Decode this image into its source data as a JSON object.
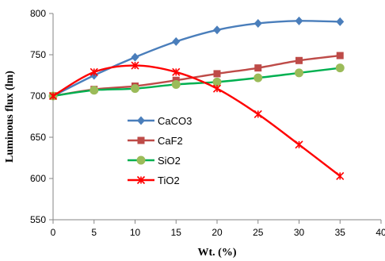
{
  "chart_data": {
    "type": "line",
    "xlabel": "Wt. (%)",
    "ylabel": "Luminous flux (lm)",
    "xlim": [
      0,
      40
    ],
    "ylim": [
      550,
      800
    ],
    "xticks": [
      "0",
      "5",
      "10",
      "15",
      "20",
      "25",
      "30",
      "35",
      "40"
    ],
    "yticks": [
      "550",
      "600",
      "650",
      "700",
      "750",
      "800"
    ],
    "grid": false,
    "legend_position": "center-left",
    "series": [
      {
        "name": "CaCO3",
        "color": "#4a7ebb",
        "marker": "diamond",
        "x": [
          0,
          5,
          10,
          15,
          20,
          25,
          30,
          35
        ],
        "y": [
          700,
          725,
          747,
          766,
          780,
          788,
          791,
          790
        ]
      },
      {
        "name": "CaF2",
        "color": "#be4b48",
        "marker": "square",
        "x": [
          0,
          5,
          10,
          15,
          20,
          25,
          30,
          35
        ],
        "y": [
          700,
          708,
          712,
          719,
          727,
          734,
          743,
          749
        ]
      },
      {
        "name": "SiO2",
        "color": "#00b050",
        "marker_color": "#9bbb59",
        "marker": "circle",
        "x": [
          0,
          5,
          10,
          15,
          20,
          25,
          30,
          35
        ],
        "y": [
          700,
          707,
          709,
          714,
          717,
          722,
          728,
          734
        ]
      },
      {
        "name": "TiO2",
        "color": "#ff0000",
        "marker": "star",
        "x": [
          0,
          5,
          10,
          15,
          20,
          25,
          30,
          35
        ],
        "y": [
          700,
          729,
          737,
          729,
          709,
          678,
          641,
          603
        ]
      }
    ]
  }
}
